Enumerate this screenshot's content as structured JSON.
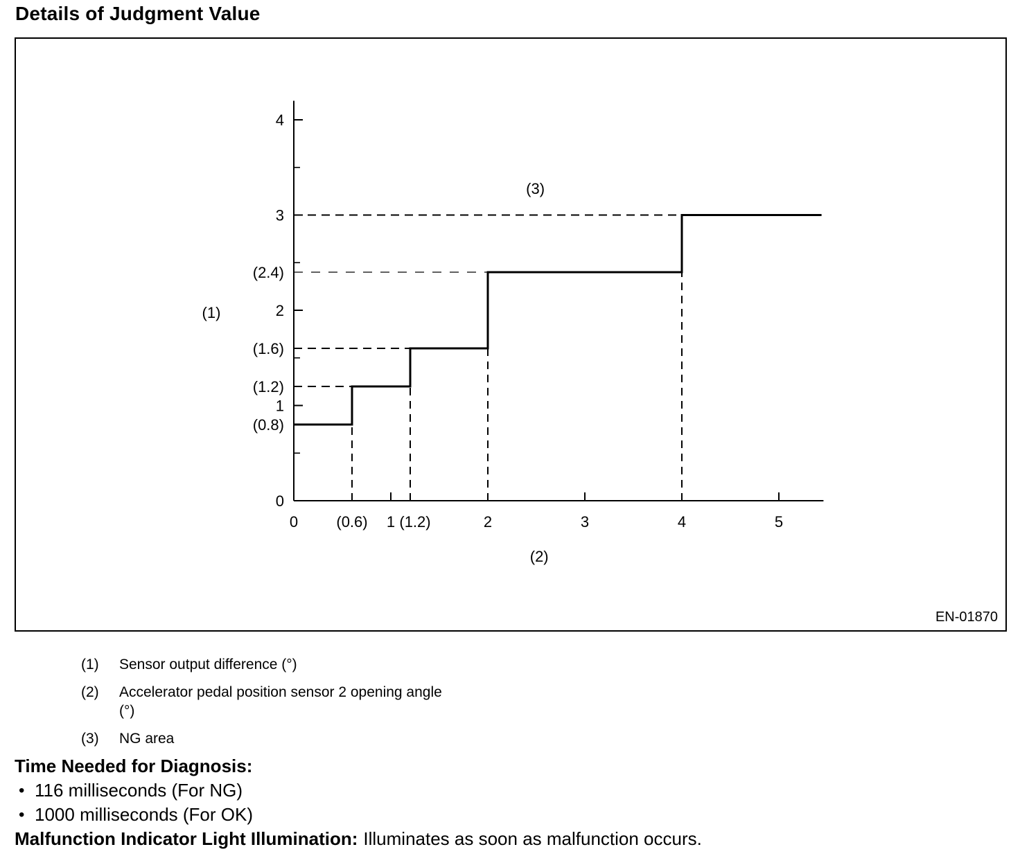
{
  "page": {
    "title": "Details of Judgment Value",
    "figure_code": "EN-01870"
  },
  "chart_data": {
    "type": "line",
    "subtype": "step-function",
    "title": "",
    "xlabel": "(2) Accelerator pedal position sensor 2 opening angle (°)",
    "ylabel": "(1) Sensor output difference (°)",
    "xlim": [
      0,
      5.46
    ],
    "ylim": [
      0,
      4.2
    ],
    "grid": false,
    "legend_position": "none",
    "line_color": "#000000",
    "background": "#ffffff",
    "steps": [
      {
        "x_start": 0,
        "x_end": 0.6,
        "y": 0.8
      },
      {
        "x_start": 0.6,
        "x_end": 1.2,
        "y": 1.2
      },
      {
        "x_start": 1.2,
        "x_end": 2,
        "y": 1.6
      },
      {
        "x_start": 2,
        "x_end": 4,
        "y": 2.4
      },
      {
        "x_start": 4,
        "x_end": 5.44,
        "y": 3
      }
    ],
    "dashed_guides_horizontal": [
      {
        "y": 1.2,
        "from_x": 0,
        "to_x": 0.6,
        "thin": false
      },
      {
        "y": 1.6,
        "from_x": 0,
        "to_x": 1.2,
        "thin": false
      },
      {
        "y": 2.4,
        "from_x": 0,
        "to_x": 2,
        "thin": true
      },
      {
        "y": 3,
        "from_x": 0,
        "to_x": 4,
        "thin": false
      }
    ],
    "dashed_guides_vertical": [
      {
        "x": 0.6,
        "from_y": 0,
        "to_y": 0.8
      },
      {
        "x": 1.2,
        "from_y": 0,
        "to_y": 1.2
      },
      {
        "x": 2,
        "from_y": 0,
        "to_y": 1.6
      },
      {
        "x": 4,
        "from_y": 0,
        "to_y": 2.4
      }
    ],
    "y_tick_labels": [
      {
        "value": 4,
        "label": "4"
      },
      {
        "value": 3,
        "label": "3"
      },
      {
        "value": 2.4,
        "label": "(2.4)"
      },
      {
        "value": 2,
        "label": "2"
      },
      {
        "value": 1.6,
        "label": "(1.6)"
      },
      {
        "value": 1.2,
        "label": "(1.2)"
      },
      {
        "value": 1,
        "label": "1"
      },
      {
        "value": 0.8,
        "label": "(0.8)"
      },
      {
        "value": 0,
        "label": "0"
      }
    ],
    "x_tick_labels": [
      {
        "value": 0,
        "label": "0"
      },
      {
        "value": 0.6,
        "label": "(0.6)"
      },
      {
        "value": 1,
        "label": "1"
      },
      {
        "value": 1.2,
        "label": "(1.2)",
        "dx": 7
      },
      {
        "value": 2,
        "label": "2"
      },
      {
        "value": 3,
        "label": "3"
      },
      {
        "value": 4,
        "label": "4"
      },
      {
        "value": 5,
        "label": "5"
      }
    ],
    "y_axis_ticks_major": [
      1,
      2,
      3,
      4
    ],
    "y_axis_ticks_minor": [
      0.5,
      1.5,
      2.5,
      3.5
    ],
    "x_axis_ticks": [
      1,
      3,
      5
    ],
    "annotations": [
      {
        "text": "(1)",
        "x": -0.85,
        "y": 1.98,
        "role": "y-axis-label"
      },
      {
        "text": "(2)",
        "x": 2.53,
        "y": -0.58,
        "role": "x-axis-label"
      },
      {
        "text": "(3)",
        "x": 2.49,
        "y": 3.28,
        "role": "ng-area-label"
      }
    ]
  },
  "legend": {
    "items": [
      {
        "num": "(1)",
        "text": "Sensor output difference (°)"
      },
      {
        "num": "(2)",
        "text": "Accelerator pedal position sensor 2 opening angle (°)"
      },
      {
        "num": "(3)",
        "text": "NG area"
      }
    ]
  },
  "diagnosis": {
    "heading": "Time Needed for Diagnosis:",
    "bullet_char": "•",
    "bullets": [
      "116 milliseconds (For NG)",
      "1000 milliseconds (For OK)"
    ]
  },
  "mil": {
    "heading": "Malfunction Indicator Light Illumination:",
    "text": "Illuminates as soon as malfunction occurs."
  }
}
